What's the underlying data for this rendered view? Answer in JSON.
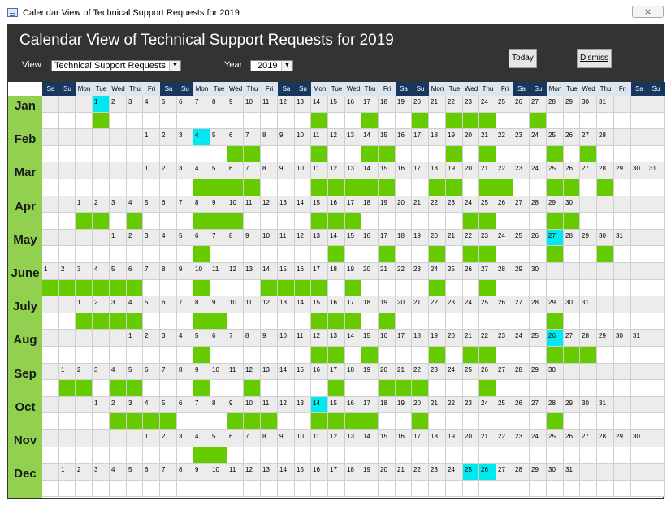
{
  "window": {
    "title": "Calendar View of Technical Support Requests for 2019",
    "close_symbol": "⨯",
    "icon": "form-icon"
  },
  "header": {
    "heading": "Calendar View of Technical Support Requests for 2019",
    "view_label": "View",
    "view_value": "Technical Support Requests",
    "year_label": "Year",
    "year_value": "2019",
    "today_button": "Today",
    "dismiss_button": "Dismiss",
    "dropdown_arrow": "▼"
  },
  "calendar": {
    "year": 2019,
    "day_headers": [
      "Sa",
      "Su",
      "Mon",
      "Tue",
      "Wed",
      "Thu",
      "Fri",
      "Sa",
      "Su",
      "Mon",
      "Tue",
      "Wed",
      "Thu",
      "Fri",
      "Sa",
      "Su",
      "Mon",
      "Tue",
      "Wed",
      "Thu",
      "Fri",
      "Sa",
      "Su",
      "Mon",
      "Tue",
      "Wed",
      "Thu",
      "Fri",
      "Sa",
      "Su",
      "Mon",
      "Tue",
      "Wed",
      "Thu",
      "Fri",
      "Sa",
      "Su"
    ],
    "months": [
      {
        "name": "Jan",
        "start_col": 3,
        "days": 31,
        "today": [
          1
        ],
        "requests": [
          1,
          14,
          17,
          20,
          22,
          23,
          24,
          27
        ]
      },
      {
        "name": "Feb",
        "start_col": 6,
        "days": 28,
        "today": [
          4
        ],
        "requests": [
          6,
          7,
          11,
          14,
          15,
          19,
          21,
          25,
          27
        ]
      },
      {
        "name": "Mar",
        "start_col": 6,
        "days": 31,
        "today": [],
        "requests": [
          4,
          5,
          6,
          7,
          11,
          12,
          13,
          14,
          15,
          18,
          19,
          21,
          22,
          25,
          26,
          28
        ]
      },
      {
        "name": "Apr",
        "start_col": 2,
        "days": 30,
        "today": [],
        "requests": [
          1,
          2,
          4,
          8,
          9,
          10,
          15,
          16,
          17,
          24,
          25,
          29,
          30
        ]
      },
      {
        "name": "May",
        "start_col": 4,
        "days": 31,
        "today": [
          27
        ],
        "requests": [
          6,
          14,
          17,
          20,
          22,
          23,
          27,
          30
        ]
      },
      {
        "name": "June",
        "start_col": 0,
        "days": 30,
        "today": [],
        "requests": [
          1,
          2,
          3,
          4,
          5,
          6,
          10,
          14,
          15,
          16,
          17,
          19,
          24,
          27
        ]
      },
      {
        "name": "July",
        "start_col": 2,
        "days": 31,
        "today": [],
        "requests": [
          1,
          2,
          3,
          4,
          8,
          9,
          15,
          16,
          17,
          19,
          29
        ]
      },
      {
        "name": "Aug",
        "start_col": 5,
        "days": 31,
        "today": [
          26
        ],
        "requests": [
          5,
          12,
          13,
          15,
          19,
          21,
          22,
          26,
          27,
          28
        ]
      },
      {
        "name": "Sep",
        "start_col": 1,
        "days": 30,
        "today": [],
        "requests": [
          1,
          2,
          4,
          5,
          9,
          12,
          17,
          20,
          21,
          22,
          26
        ]
      },
      {
        "name": "Oct",
        "start_col": 3,
        "days": 31,
        "today": [
          14
        ],
        "requests": [
          2,
          3,
          4,
          5,
          9,
          10,
          11,
          14,
          15,
          16,
          17,
          20,
          28
        ]
      },
      {
        "name": "Nov",
        "start_col": 6,
        "days": 30,
        "today": [],
        "requests": [
          4,
          5
        ]
      },
      {
        "name": "Dec",
        "start_col": 1,
        "days": 31,
        "today": [
          25,
          26
        ],
        "requests": []
      }
    ],
    "colors": {
      "request": "#66cc00",
      "today": "#00e8f0",
      "month_band": "#92d050",
      "weekend_header": "#17375e",
      "weekday_header": "#dce6f1"
    }
  }
}
